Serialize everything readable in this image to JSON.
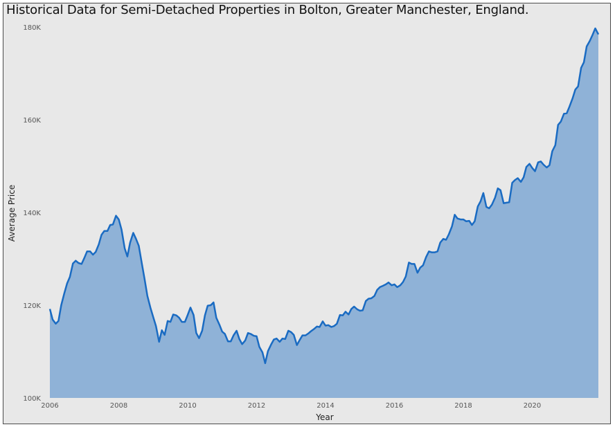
{
  "chart_data": {
    "type": "area",
    "title": "Historical Data for Semi-Detached Properties in Bolton, Greater Manchester, England.",
    "xlabel": "Year",
    "ylabel": "Average Price",
    "xlim": [
      2006,
      2022
    ],
    "ylim": [
      100000,
      180000
    ],
    "x_ticks": [
      2006,
      2008,
      2010,
      2012,
      2014,
      2016,
      2018,
      2020
    ],
    "x_tick_labels": [
      "2006",
      "2008",
      "2010",
      "2012",
      "2014",
      "2016",
      "2018",
      "2020"
    ],
    "y_ticks": [
      100000,
      120000,
      140000,
      160000,
      180000
    ],
    "y_tick_labels": [
      "100K",
      "120K",
      "140K",
      "160K",
      "180K"
    ],
    "grid": false,
    "legend": "none",
    "line_color": "#1a6bc2",
    "fill_color": "#8fb2d7",
    "background": "#e8e8e8",
    "x": [
      2006.0,
      2006.08,
      2006.17,
      2006.25,
      2006.33,
      2006.42,
      2006.5,
      2006.58,
      2006.67,
      2006.75,
      2006.83,
      2006.92,
      2007.0,
      2007.08,
      2007.17,
      2007.25,
      2007.33,
      2007.42,
      2007.5,
      2007.58,
      2007.67,
      2007.75,
      2007.83,
      2007.92,
      2008.0,
      2008.08,
      2008.17,
      2008.25,
      2008.33,
      2008.42,
      2008.5,
      2008.58,
      2008.67,
      2008.75,
      2008.83,
      2008.92,
      2009.0,
      2009.08,
      2009.17,
      2009.25,
      2009.33,
      2009.42,
      2009.5,
      2009.58,
      2009.67,
      2009.75,
      2009.83,
      2009.92,
      2010.0,
      2010.08,
      2010.17,
      2010.25,
      2010.33,
      2010.42,
      2010.5,
      2010.58,
      2010.67,
      2010.75,
      2010.83,
      2010.92,
      2011.0,
      2011.08,
      2011.17,
      2011.25,
      2011.33,
      2011.42,
      2011.5,
      2011.58,
      2011.67,
      2011.75,
      2011.83,
      2011.92,
      2012.0,
      2012.08,
      2012.17,
      2012.25,
      2012.33,
      2012.42,
      2012.5,
      2012.58,
      2012.67,
      2012.75,
      2012.83,
      2012.92,
      2013.0,
      2013.08,
      2013.17,
      2013.25,
      2013.33,
      2013.42,
      2013.5,
      2013.58,
      2013.67,
      2013.75,
      2013.83,
      2013.92,
      2014.0,
      2014.08,
      2014.17,
      2014.25,
      2014.33,
      2014.42,
      2014.5,
      2014.58,
      2014.67,
      2014.75,
      2014.83,
      2014.92,
      2015.0,
      2015.08,
      2015.17,
      2015.25,
      2015.33,
      2015.42,
      2015.5,
      2015.58,
      2015.67,
      2015.75,
      2015.83,
      2015.92,
      2016.0,
      2016.08,
      2016.17,
      2016.25,
      2016.33,
      2016.42,
      2016.5,
      2016.58,
      2016.67,
      2016.75,
      2016.83,
      2016.92,
      2017.0,
      2017.08,
      2017.17,
      2017.25,
      2017.33,
      2017.42,
      2017.5,
      2017.58,
      2017.67,
      2017.75,
      2017.83,
      2017.92,
      2018.0,
      2018.08,
      2018.17,
      2018.25,
      2018.33,
      2018.42,
      2018.5,
      2018.58,
      2018.67,
      2018.75,
      2018.83,
      2018.92,
      2019.0,
      2019.08,
      2019.17,
      2019.25,
      2019.33,
      2019.42,
      2019.5,
      2019.58,
      2019.67,
      2019.75,
      2019.83,
      2019.92,
      2020.0,
      2020.08,
      2020.17,
      2020.25,
      2020.33,
      2020.42,
      2020.5,
      2020.58,
      2020.67,
      2020.75,
      2020.83,
      2020.92,
      2021.0,
      2021.08,
      2021.17,
      2021.25,
      2021.33,
      2021.42,
      2021.5,
      2021.58,
      2021.67,
      2021.75,
      2021.83,
      2021.92
    ],
    "y": [
      119200,
      116900,
      116000,
      116600,
      120000,
      122600,
      124700,
      126100,
      129000,
      129600,
      129100,
      128900,
      130200,
      131600,
      131600,
      130900,
      131500,
      133100,
      135200,
      136000,
      136000,
      137300,
      137400,
      139300,
      138500,
      136300,
      132300,
      130500,
      133500,
      135600,
      134300,
      132800,
      129000,
      125600,
      122000,
      119400,
      117400,
      115500,
      112100,
      114600,
      113600,
      116600,
      116400,
      118000,
      117800,
      117300,
      116400,
      116400,
      117900,
      119500,
      117900,
      114000,
      112900,
      114500,
      117800,
      119900,
      120000,
      120600,
      117300,
      115800,
      114300,
      113800,
      112200,
      112200,
      113500,
      114500,
      112700,
      111600,
      112400,
      114000,
      113800,
      113400,
      113300,
      111000,
      109800,
      107500,
      110100,
      111500,
      112600,
      112800,
      112100,
      112800,
      112700,
      114500,
      114200,
      113600,
      111400,
      112500,
      113500,
      113500,
      113900,
      114400,
      114900,
      115400,
      115300,
      116500,
      115600,
      115700,
      115300,
      115500,
      116000,
      117900,
      117800,
      118600,
      118000,
      119200,
      119700,
      119100,
      118800,
      118900,
      120900,
      121400,
      121500,
      122000,
      123300,
      123900,
      124200,
      124500,
      124900,
      124300,
      124500,
      123900,
      124300,
      125000,
      126200,
      129200,
      128900,
      128900,
      127000,
      128100,
      128600,
      130400,
      131600,
      131400,
      131400,
      131600,
      133500,
      134300,
      134100,
      135300,
      137000,
      139500,
      138700,
      138500,
      138500,
      138100,
      138200,
      137300,
      138100,
      141300,
      142400,
      144200,
      141200,
      140900,
      141700,
      143200,
      145200,
      144800,
      142000,
      142100,
      142200,
      146400,
      147000,
      147400,
      146600,
      147600,
      149800,
      150500,
      149600,
      148900,
      150800,
      151000,
      150300,
      149700,
      150200,
      153200,
      154500,
      158900,
      159600,
      161300,
      161400,
      162800,
      164600,
      166500,
      167200,
      171200,
      172400,
      175800,
      177000,
      178300,
      179700,
      178400
    ]
  }
}
